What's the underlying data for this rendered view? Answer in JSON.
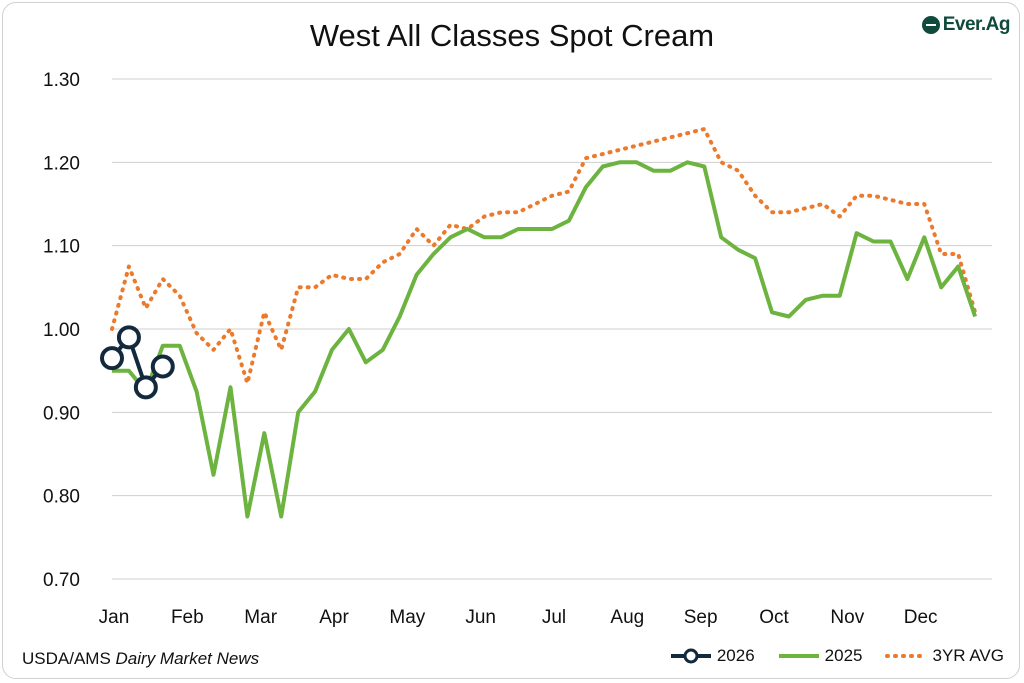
{
  "chart_data": {
    "type": "line",
    "title": "West All Classes Spot Cream",
    "xlabel": "",
    "ylabel": "",
    "ylim": [
      0.7,
      1.3
    ],
    "yticks": [
      "0.70",
      "0.80",
      "0.90",
      "1.00",
      "1.10",
      "1.20",
      "1.30"
    ],
    "months": [
      "Jan",
      "Feb",
      "Mar",
      "Apr",
      "May",
      "Jun",
      "Jul",
      "Aug",
      "Sep",
      "Oct",
      "Nov",
      "Dec"
    ],
    "grid": true,
    "legend_position": "bottom-right",
    "series": [
      {
        "name": "2026",
        "color": "#13293d",
        "style": "line-markers",
        "values": [
          0.965,
          0.99,
          0.93,
          0.955
        ]
      },
      {
        "name": "2025",
        "color": "#6cb33f",
        "style": "solid",
        "values": [
          0.95,
          0.95,
          0.925,
          0.98,
          0.98,
          0.925,
          0.825,
          0.93,
          0.775,
          0.875,
          0.775,
          0.9,
          0.925,
          0.975,
          1.0,
          0.96,
          0.975,
          1.015,
          1.065,
          1.09,
          1.11,
          1.12,
          1.11,
          1.11,
          1.12,
          1.12,
          1.12,
          1.13,
          1.17,
          1.195,
          1.2,
          1.2,
          1.19,
          1.19,
          1.2,
          1.195,
          1.11,
          1.095,
          1.085,
          1.02,
          1.015,
          1.035,
          1.04,
          1.04,
          1.115,
          1.105,
          1.105,
          1.06,
          1.11,
          1.05,
          1.075,
          1.015
        ]
      },
      {
        "name": "3YR AVG",
        "color": "#ec7a2c",
        "style": "dotted",
        "values": [
          1.0,
          1.075,
          1.025,
          1.06,
          1.04,
          0.995,
          0.975,
          1.0,
          0.935,
          1.02,
          0.975,
          1.05,
          1.05,
          1.065,
          1.06,
          1.06,
          1.08,
          1.09,
          1.12,
          1.1,
          1.125,
          1.12,
          1.135,
          1.14,
          1.14,
          1.15,
          1.16,
          1.165,
          1.205,
          1.21,
          1.215,
          1.22,
          1.225,
          1.23,
          1.235,
          1.24,
          1.2,
          1.19,
          1.16,
          1.14,
          1.14,
          1.145,
          1.15,
          1.135,
          1.16,
          1.16,
          1.155,
          1.15,
          1.15,
          1.09,
          1.09,
          1.02
        ]
      }
    ]
  },
  "source": {
    "agency": "USDA/AMS",
    "publication": "Dairy Market News"
  },
  "logo": {
    "text": "Ever.Ag",
    "color": "#0f4a3c"
  }
}
